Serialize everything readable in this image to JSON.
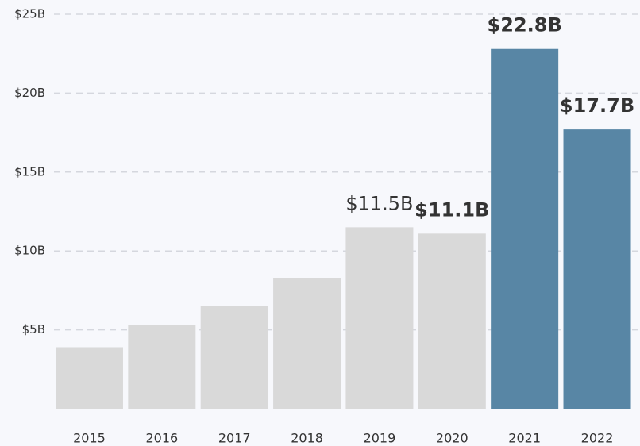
{
  "chart_data": {
    "type": "bar",
    "categories": [
      "2015",
      "2016",
      "2017",
      "2018",
      "2019",
      "2020",
      "2021",
      "2022"
    ],
    "values": [
      3.9,
      5.3,
      6.5,
      8.3,
      11.5,
      11.1,
      22.8,
      17.7
    ],
    "value_labels": [
      null,
      null,
      null,
      null,
      "$11.5B",
      "$11.1B",
      "$22.8B",
      "$17.7B"
    ],
    "colors": [
      "#d9d9d9",
      "#d9d9d9",
      "#d9d9d9",
      "#d9d9d9",
      "#d9d9d9",
      "#d9d9d9",
      "#5886a5",
      "#5886a5"
    ],
    "ylim": [
      0,
      25
    ],
    "yticks": [
      {
        "value": 5,
        "label": "$5B"
      },
      {
        "value": 10,
        "label": "$10B"
      },
      {
        "value": 15,
        "label": "$15B"
      },
      {
        "value": 20,
        "label": "$20B"
      },
      {
        "value": 25,
        "label": "$25B"
      }
    ],
    "grid": true
  }
}
